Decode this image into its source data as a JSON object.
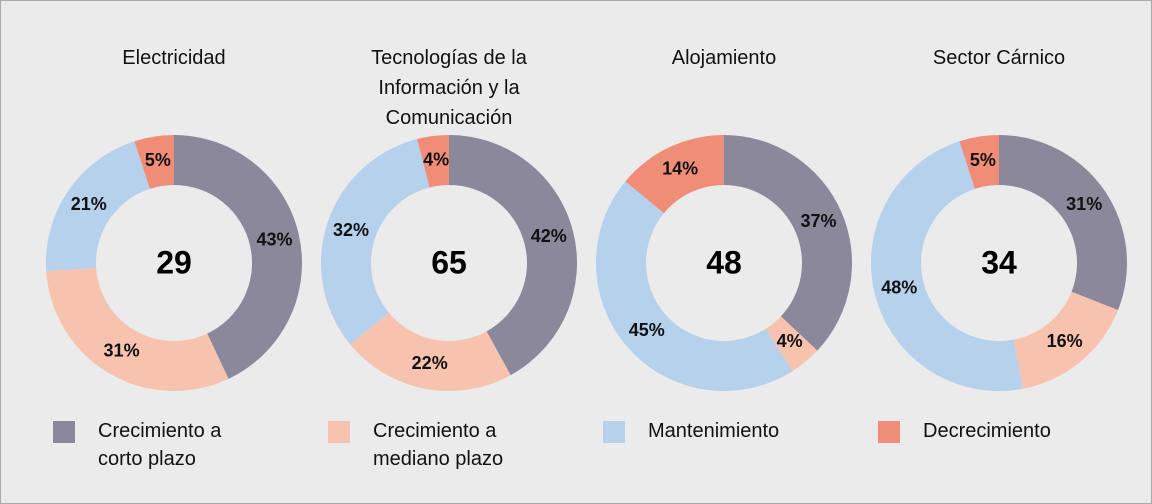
{
  "legend": {
    "categories": [
      "Crecimiento a corto plazo",
      "Crecimiento a mediano plazo",
      "Mantenimiento",
      "Decrecimiento"
    ],
    "colors": [
      "#8b889b",
      "#f7c3ae",
      "#b5d1eb",
      "#f08d77"
    ]
  },
  "chart_data": [
    {
      "type": "donut",
      "title": "Electricidad",
      "center": 29,
      "values": [
        43,
        31,
        21,
        5
      ],
      "value_labels": [
        "43%",
        "31%",
        "21%",
        "5%"
      ]
    },
    {
      "type": "donut",
      "title": "Tecnologías de la Información y la Comunicación",
      "center": 65,
      "values": [
        42,
        22,
        32,
        4
      ],
      "value_labels": [
        "42%",
        "22%",
        "32%",
        "4%"
      ]
    },
    {
      "type": "donut",
      "title": "Alojamiento",
      "center": 48,
      "values": [
        37,
        4,
        45,
        14
      ],
      "value_labels": [
        "37%",
        "4%",
        "45%",
        "14%"
      ]
    },
    {
      "type": "donut",
      "title": "Sector Cárnico",
      "center": 34,
      "values": [
        31,
        16,
        48,
        5
      ],
      "value_labels": [
        "31%",
        "16%",
        "48%",
        "5%"
      ]
    }
  ]
}
